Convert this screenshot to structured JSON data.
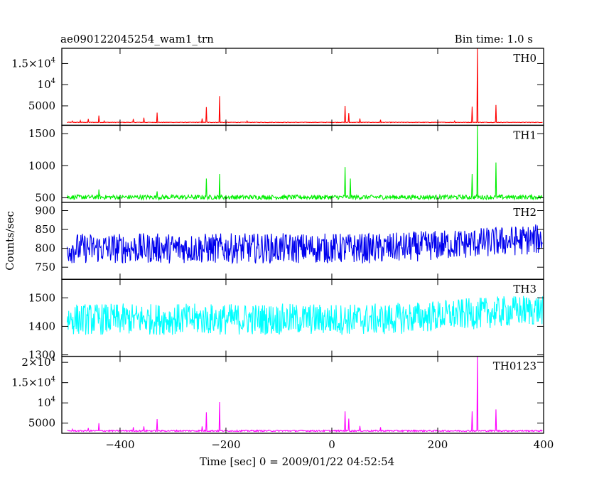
{
  "chart_data": {
    "type": "line",
    "title": "ae090122045254_wam1_trn",
    "subtitle": "Bin time: 1.0 s",
    "xlabel": "Time [sec] 0 = 2009/01/22 04:52:54",
    "ylabel": "Counts/sec",
    "xlim": [
      -510,
      400
    ],
    "xticks": [
      -400,
      -200,
      0,
      200,
      400
    ],
    "grid": false,
    "legend": "none",
    "panels": [
      {
        "name": "TH0",
        "color": "#ff0000",
        "ylim": [
          400,
          18600
        ],
        "baseline": 1100,
        "noise": 60,
        "yticks": [
          {
            "value": 5000,
            "base": "5000",
            "exp": ""
          },
          {
            "value": 10000,
            "base": "10",
            "exp": "4"
          },
          {
            "value": 15000,
            "base": "1.5×10",
            "exp": "4"
          }
        ],
        "peaks": [
          {
            "x": -490,
            "y": 1400
          },
          {
            "x": -475,
            "y": 1500
          },
          {
            "x": -460,
            "y": 1900
          },
          {
            "x": -440,
            "y": 2700
          },
          {
            "x": -430,
            "y": 1400
          },
          {
            "x": -375,
            "y": 1900
          },
          {
            "x": -355,
            "y": 2200
          },
          {
            "x": -330,
            "y": 3400
          },
          {
            "x": -245,
            "y": 2000
          },
          {
            "x": -237,
            "y": 4700
          },
          {
            "x": -212,
            "y": 7300
          },
          {
            "x": -160,
            "y": 1400
          },
          {
            "x": 25,
            "y": 5000
          },
          {
            "x": 32,
            "y": 3300
          },
          {
            "x": 53,
            "y": 2000
          },
          {
            "x": 92,
            "y": 1700
          },
          {
            "x": 265,
            "y": 4800
          },
          {
            "x": 275,
            "y": 18600
          },
          {
            "x": 310,
            "y": 5200
          },
          {
            "x": 232,
            "y": 1400
          }
        ]
      },
      {
        "name": "TH1",
        "color": "#00ee00",
        "ylim": [
          430,
          1630
        ],
        "baseline": 510,
        "noise": 35,
        "yticks": [
          {
            "value": 500,
            "base": "500",
            "exp": ""
          },
          {
            "value": 1000,
            "base": "1000",
            "exp": ""
          },
          {
            "value": 1500,
            "base": "1500",
            "exp": ""
          }
        ],
        "peaks": [
          {
            "x": -440,
            "y": 630
          },
          {
            "x": -330,
            "y": 600
          },
          {
            "x": -237,
            "y": 800
          },
          {
            "x": -212,
            "y": 870
          },
          {
            "x": 25,
            "y": 980
          },
          {
            "x": 35,
            "y": 800
          },
          {
            "x": 265,
            "y": 870
          },
          {
            "x": 275,
            "y": 1630
          },
          {
            "x": 310,
            "y": 1050
          }
        ]
      },
      {
        "name": "TH2",
        "color": "#0000ee",
        "ylim": [
          718,
          922
        ],
        "baseline": 800,
        "noise": 40,
        "drift": 25,
        "yticks": [
          {
            "value": 750,
            "base": "750",
            "exp": ""
          },
          {
            "value": 800,
            "base": "800",
            "exp": ""
          },
          {
            "value": 850,
            "base": "850",
            "exp": ""
          },
          {
            "value": 900,
            "base": "900",
            "exp": ""
          }
        ],
        "peaks": []
      },
      {
        "name": "TH3",
        "color": "#00ffff",
        "ylim": [
          1295,
          1565
        ],
        "baseline": 1425,
        "noise": 55,
        "drift": 35,
        "yticks": [
          {
            "value": 1300,
            "base": "1300",
            "exp": ""
          },
          {
            "value": 1400,
            "base": "1400",
            "exp": ""
          },
          {
            "value": 1500,
            "base": "1500",
            "exp": ""
          }
        ],
        "peaks": []
      },
      {
        "name": "TH0123",
        "color": "#ff00ff",
        "ylim": [
          2500,
          21500
        ],
        "baseline": 3100,
        "noise": 180,
        "yticks": [
          {
            "value": 5000,
            "base": "5000",
            "exp": ""
          },
          {
            "value": 10000,
            "base": "10",
            "exp": "4"
          },
          {
            "value": 15000,
            "base": "1.5×10",
            "exp": "4"
          },
          {
            "value": 20000,
            "base": "2×10",
            "exp": "4"
          }
        ],
        "peaks": [
          {
            "x": -490,
            "y": 3500
          },
          {
            "x": -460,
            "y": 3800
          },
          {
            "x": -440,
            "y": 5000
          },
          {
            "x": -375,
            "y": 4000
          },
          {
            "x": -355,
            "y": 4200
          },
          {
            "x": -330,
            "y": 6000
          },
          {
            "x": -245,
            "y": 4200
          },
          {
            "x": -237,
            "y": 7700
          },
          {
            "x": -212,
            "y": 10200
          },
          {
            "x": 25,
            "y": 7900
          },
          {
            "x": 32,
            "y": 6100
          },
          {
            "x": 53,
            "y": 4300
          },
          {
            "x": 92,
            "y": 4000
          },
          {
            "x": 265,
            "y": 7900
          },
          {
            "x": 275,
            "y": 21500
          },
          {
            "x": 310,
            "y": 8400
          }
        ]
      }
    ]
  }
}
